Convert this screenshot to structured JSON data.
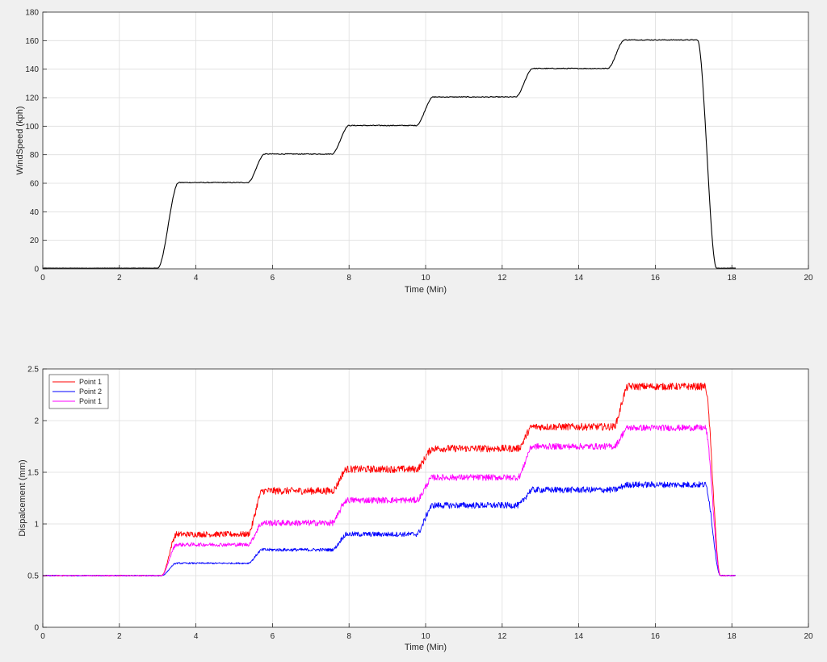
{
  "chart_data": [
    {
      "type": "line",
      "xlabel": "Time (Min)",
      "ylabel": "WindSpeed (kph)",
      "xlim": [
        0,
        20
      ],
      "ylim": [
        0,
        180
      ],
      "xticks": [
        0,
        2,
        4,
        6,
        8,
        10,
        12,
        14,
        16,
        18,
        20
      ],
      "yticks": [
        0,
        20,
        40,
        60,
        80,
        100,
        120,
        140,
        160,
        180
      ],
      "grid": true,
      "series": [
        {
          "color": "#000000",
          "x": [
            0,
            3.0,
            3.55,
            5.35,
            5.8,
            7.55,
            8.0,
            9.75,
            10.2,
            12.35,
            12.8,
            14.75,
            15.2,
            17.1,
            17.6,
            18.1
          ],
          "y": [
            0.5,
            0.5,
            60.5,
            60.5,
            80.5,
            80.5,
            100.5,
            100.5,
            120.5,
            120.5,
            140.5,
            140.5,
            160.5,
            160.5,
            0.5,
            0.5
          ]
        }
      ]
    },
    {
      "type": "line",
      "xlabel": "Time (Min)",
      "ylabel": "Dispalcement (mm)",
      "xlim": [
        0,
        20
      ],
      "ylim": [
        0,
        2.5
      ],
      "xticks": [
        0,
        2,
        4,
        6,
        8,
        10,
        12,
        14,
        16,
        18,
        20
      ],
      "yticks": [
        0,
        0.5,
        1,
        1.5,
        2,
        2.5
      ],
      "grid": true,
      "legend_position": "top-left",
      "series": [
        {
          "name": "Point 1",
          "color": "#ff0000",
          "noise": 0.035,
          "x": [
            0,
            3.1,
            3.5,
            5.35,
            5.75,
            7.55,
            7.95,
            9.75,
            10.2,
            12.4,
            12.8,
            14.9,
            15.3,
            17.3,
            17.7,
            18.1
          ],
          "y": [
            0.5,
            0.5,
            0.9,
            0.9,
            1.32,
            1.32,
            1.53,
            1.53,
            1.73,
            1.73,
            1.94,
            1.94,
            2.33,
            2.33,
            0.5,
            0.5
          ]
        },
        {
          "name": "Point 2",
          "color": "#0000ff",
          "noise": 0.03,
          "x": [
            0,
            3.1,
            3.5,
            5.35,
            5.75,
            7.55,
            7.95,
            9.75,
            10.2,
            12.4,
            12.8,
            14.9,
            15.3,
            17.3,
            17.7,
            18.1
          ],
          "y": [
            0.5,
            0.5,
            0.62,
            0.62,
            0.75,
            0.75,
            0.9,
            0.9,
            1.18,
            1.18,
            1.33,
            1.33,
            1.38,
            1.38,
            0.5,
            0.5
          ]
        },
        {
          "name": "Point 1",
          "color": "#ff00ff",
          "noise": 0.03,
          "x": [
            0,
            3.1,
            3.5,
            5.35,
            5.75,
            7.55,
            7.95,
            9.75,
            10.2,
            12.4,
            12.8,
            14.9,
            15.3,
            17.3,
            17.7,
            18.1
          ],
          "y": [
            0.5,
            0.5,
            0.8,
            0.8,
            1.01,
            1.01,
            1.23,
            1.23,
            1.45,
            1.45,
            1.75,
            1.75,
            1.93,
            1.93,
            0.5,
            0.5
          ]
        }
      ]
    }
  ]
}
